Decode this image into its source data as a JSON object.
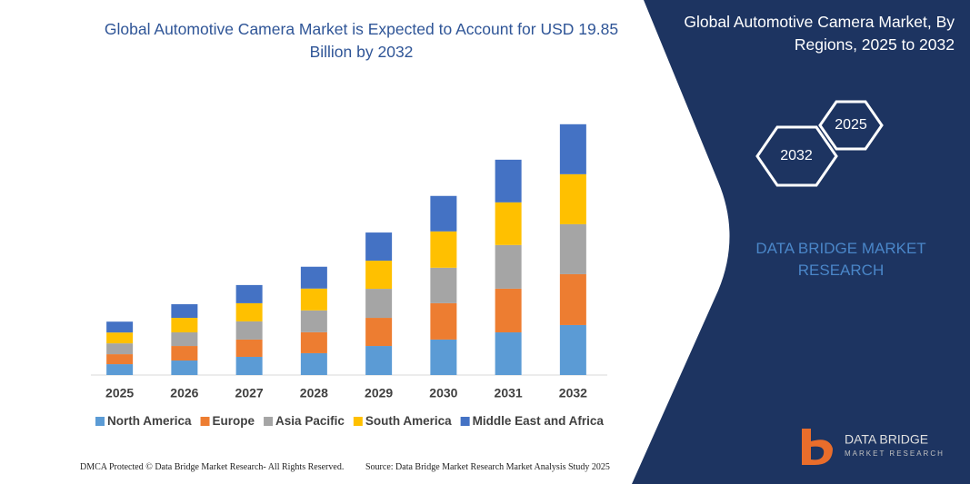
{
  "chart_data": {
    "type": "stacked-bar",
    "title": "Global Automotive Camera Market is Expected to Account for USD 19.85 Billion by 2032",
    "categories": [
      "2025",
      "2026",
      "2027",
      "2028",
      "2029",
      "2030",
      "2031",
      "2032"
    ],
    "ylim": [
      0,
      20
    ],
    "series": [
      {
        "name": "North America",
        "color": "#5b9bd5",
        "values": [
          0.86,
          1.15,
          1.44,
          1.73,
          2.3,
          2.81,
          3.38,
          3.96
        ]
      },
      {
        "name": "Europe",
        "color": "#ed7d31",
        "values": [
          0.79,
          1.15,
          1.37,
          1.66,
          2.23,
          2.88,
          3.46,
          4.03
        ]
      },
      {
        "name": "Asia Pacific",
        "color": "#a5a5a5",
        "values": [
          0.86,
          1.08,
          1.44,
          1.73,
          2.3,
          2.81,
          3.46,
          3.96
        ]
      },
      {
        "name": "South America",
        "color": "#ffc000",
        "values": [
          0.86,
          1.15,
          1.44,
          1.73,
          2.23,
          2.88,
          3.38,
          3.96
        ]
      },
      {
        "name": "Middle East and Africa",
        "color": "#4472c4",
        "values": [
          0.86,
          1.08,
          1.44,
          1.73,
          2.23,
          2.81,
          3.38,
          3.96
        ]
      }
    ]
  },
  "side_panel": {
    "title": "Global Automotive Camera Market, By Regions, 2025 to 2032",
    "hexagons": [
      "2032",
      "2025"
    ],
    "brand": "DATA BRIDGE MARKET RESEARCH"
  },
  "footer": {
    "left": "DMCA Protected © Data Bridge Market Research- All Rights Reserved.",
    "right": "Source: Data Bridge Market Research Market Analysis Study 2025"
  },
  "logo": {
    "name": "DATA BRIDGE",
    "tagline": "MARKET RESEARCH"
  }
}
